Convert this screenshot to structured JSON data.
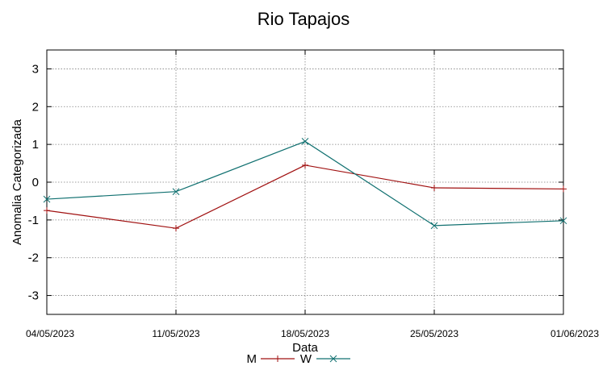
{
  "chart_data": {
    "type": "line",
    "title": "Rio Tapajos",
    "xlabel": "Data",
    "ylabel": "Anomalia Categorizada",
    "categories": [
      "04/05/2023",
      "11/05/2023",
      "18/05/2023",
      "25/05/2023",
      "01/06/2023"
    ],
    "ylim": [
      -3.5,
      3.5
    ],
    "yticks": [
      -3,
      -2,
      -1,
      0,
      1,
      2,
      3
    ],
    "grid": true,
    "legend_position": "bottom-center",
    "series": [
      {
        "name": "M",
        "marker": "plus",
        "color": "#a01010",
        "values": [
          -0.75,
          -1.22,
          0.45,
          -0.15,
          -0.18
        ]
      },
      {
        "name": "W",
        "marker": "cross",
        "color": "#107070",
        "values": [
          -0.45,
          -0.25,
          1.08,
          -1.15,
          -1.02
        ]
      }
    ]
  }
}
